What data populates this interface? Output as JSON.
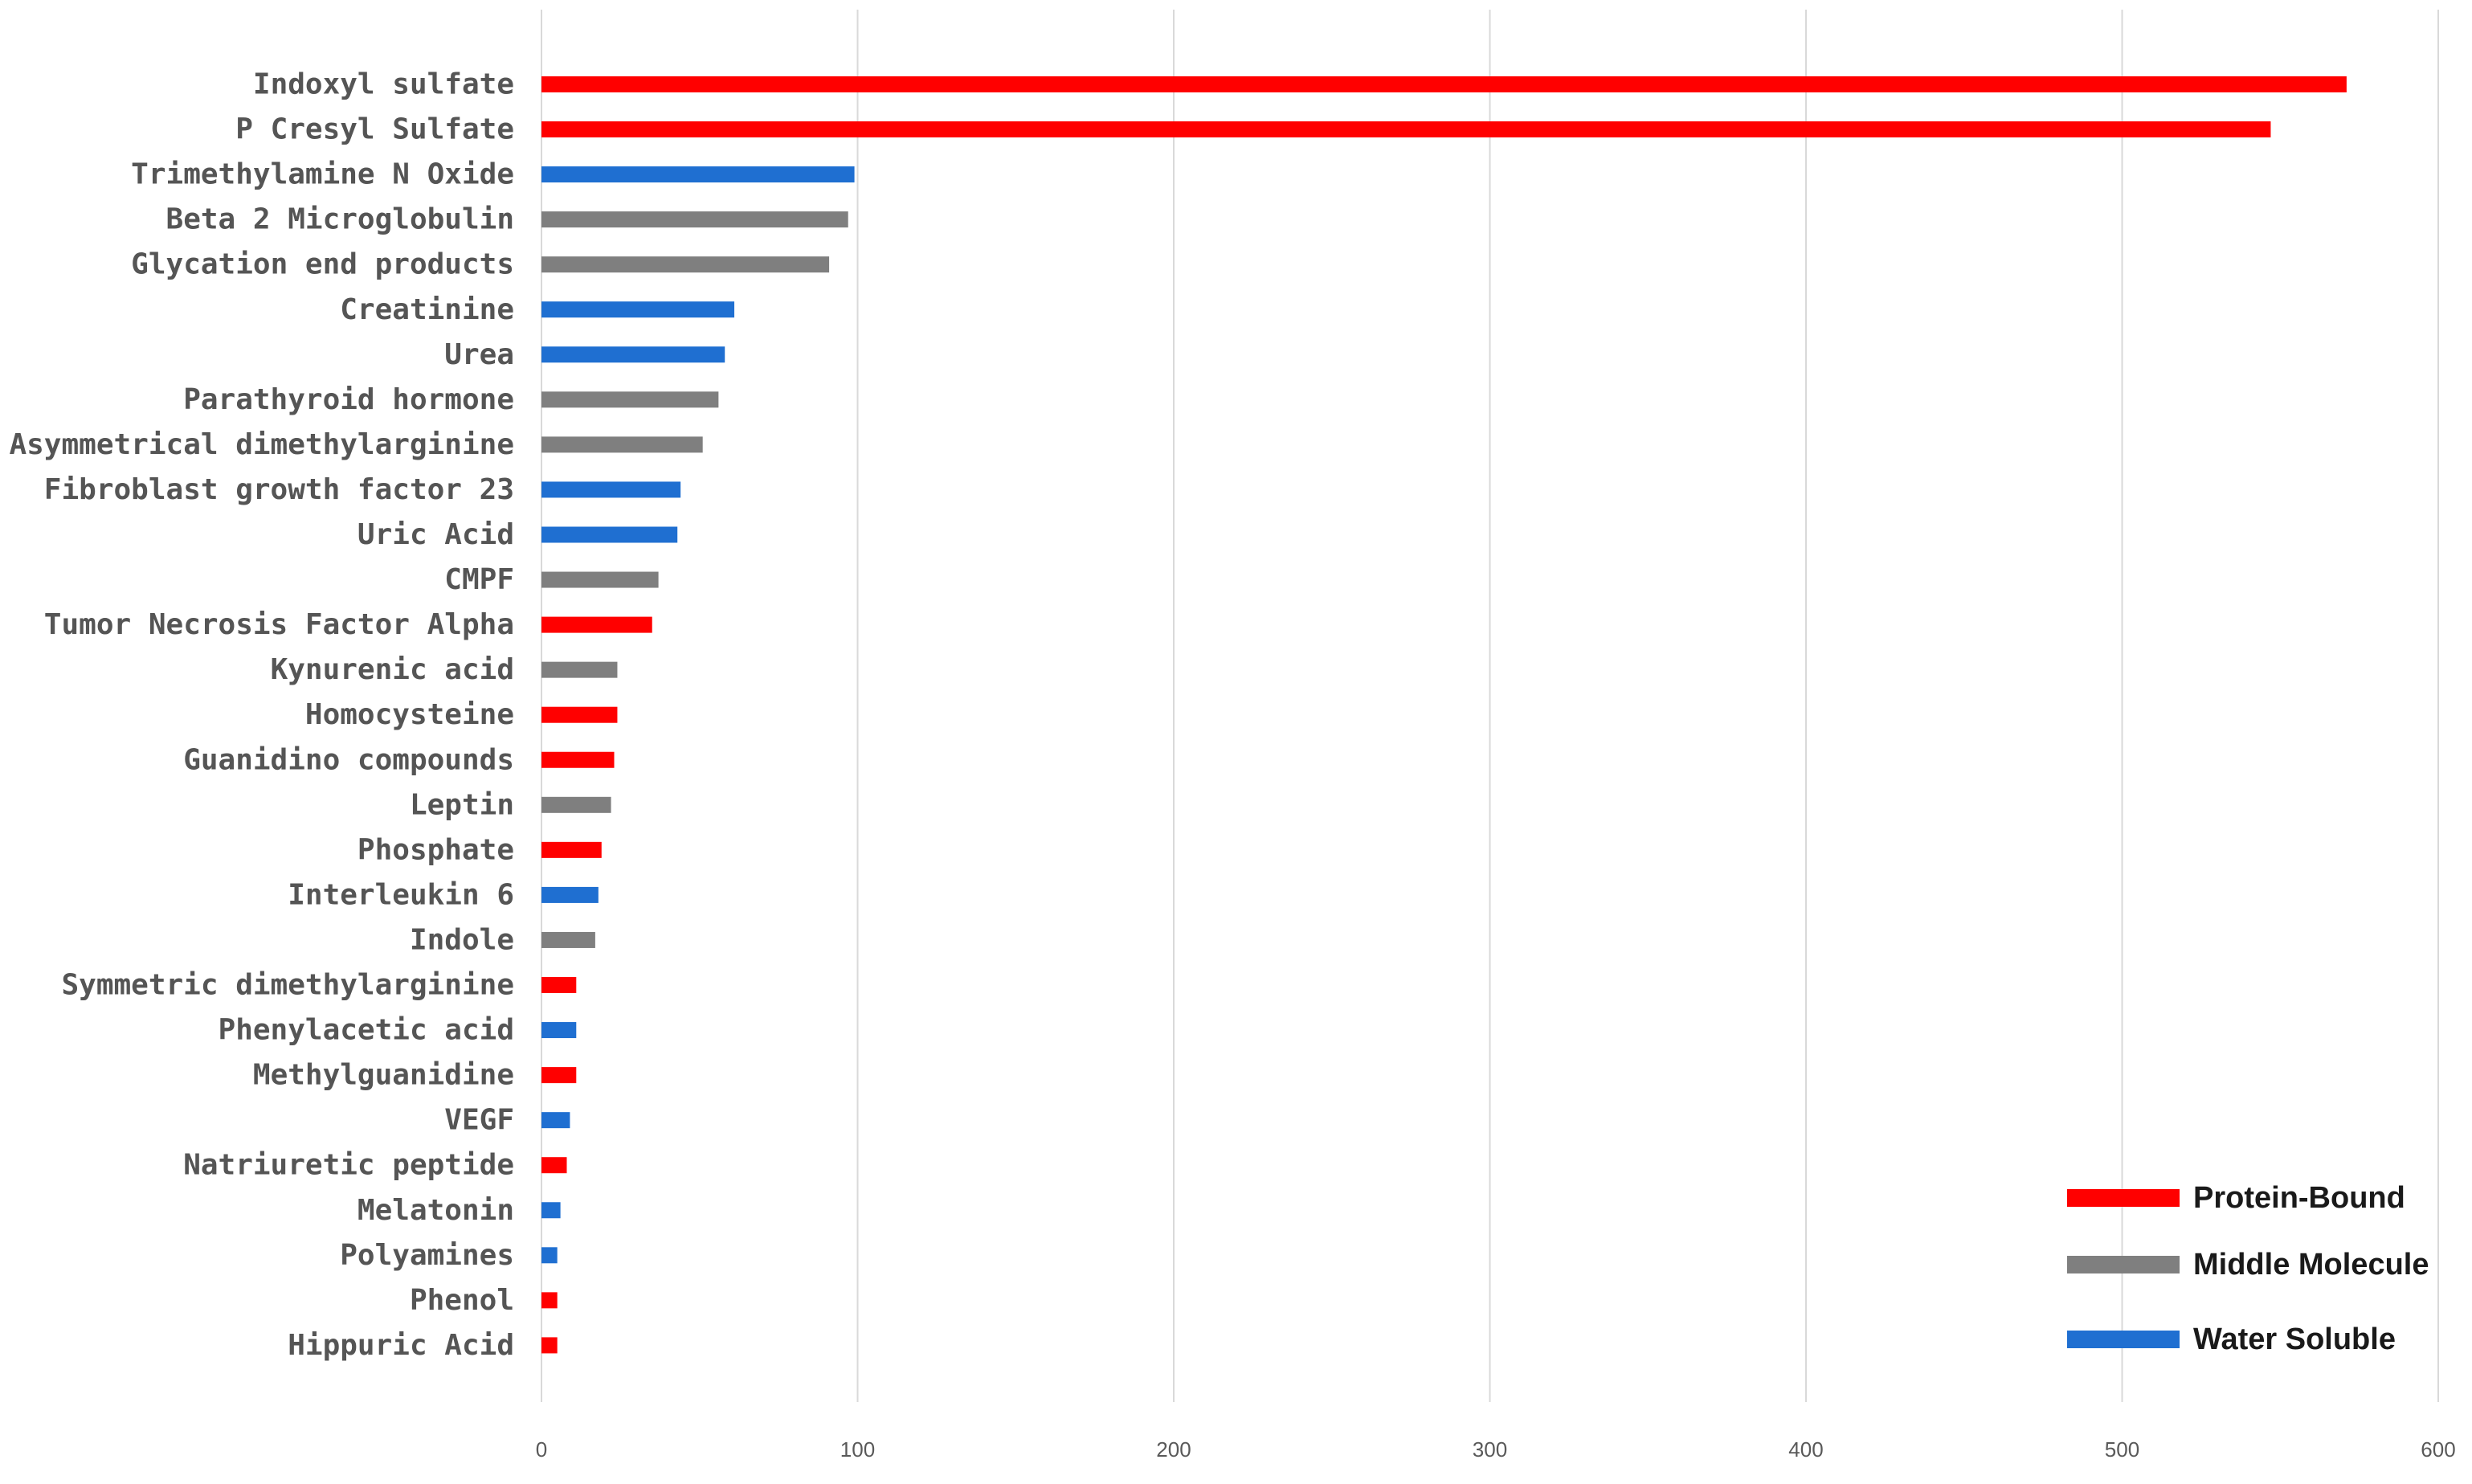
{
  "chart_data": {
    "type": "bar",
    "orientation": "horizontal",
    "title": "",
    "xlabel": "",
    "ylabel": "",
    "xlim": [
      0,
      600
    ],
    "x_ticks": [
      0,
      100,
      200,
      300,
      400,
      500,
      600
    ],
    "grid": "vertical",
    "legend_position": "bottom-right",
    "colors": {
      "Protein-Bound": "#ff0000",
      "Middle Molecule": "#7f7f7f",
      "Water Soluble": "#1f6fd1"
    },
    "legend": [
      "Protein-Bound",
      "Middle Molecule",
      "Water Soluble"
    ],
    "bars": [
      {
        "label": "Indoxyl sulfate",
        "value": 571,
        "group": "Protein-Bound"
      },
      {
        "label": "P Cresyl Sulfate",
        "value": 547,
        "group": "Protein-Bound"
      },
      {
        "label": "Trimethylamine N Oxide",
        "value": 99,
        "group": "Water Soluble"
      },
      {
        "label": "Beta 2 Microglobulin",
        "value": 97,
        "group": "Middle Molecule"
      },
      {
        "label": "Glycation end products",
        "value": 91,
        "group": "Middle Molecule"
      },
      {
        "label": "Creatinine",
        "value": 61,
        "group": "Water Soluble"
      },
      {
        "label": "Urea",
        "value": 58,
        "group": "Water Soluble"
      },
      {
        "label": "Parathyroid hormone",
        "value": 56,
        "group": "Middle Molecule"
      },
      {
        "label": "Asymmetrical dimethylarginine",
        "value": 51,
        "group": "Middle Molecule"
      },
      {
        "label": "Fibroblast growth factor 23",
        "value": 44,
        "group": "Water Soluble"
      },
      {
        "label": "Uric Acid",
        "value": 43,
        "group": "Water Soluble"
      },
      {
        "label": "CMPF",
        "value": 37,
        "group": "Middle Molecule"
      },
      {
        "label": "Tumor Necrosis Factor Alpha",
        "value": 35,
        "group": "Protein-Bound"
      },
      {
        "label": "Kynurenic acid",
        "value": 24,
        "group": "Middle Molecule"
      },
      {
        "label": "Homocysteine",
        "value": 24,
        "group": "Protein-Bound"
      },
      {
        "label": "Guanidino compounds",
        "value": 23,
        "group": "Protein-Bound"
      },
      {
        "label": "Leptin",
        "value": 22,
        "group": "Middle Molecule"
      },
      {
        "label": "Phosphate",
        "value": 19,
        "group": "Protein-Bound"
      },
      {
        "label": "Interleukin 6",
        "value": 18,
        "group": "Water Soluble"
      },
      {
        "label": "Indole",
        "value": 17,
        "group": "Middle Molecule"
      },
      {
        "label": "Symmetric dimethylarginine",
        "value": 11,
        "group": "Protein-Bound"
      },
      {
        "label": "Phenylacetic acid",
        "value": 11,
        "group": "Water Soluble"
      },
      {
        "label": "Methylguanidine",
        "value": 11,
        "group": "Protein-Bound"
      },
      {
        "label": "VEGF",
        "value": 9,
        "group": "Water Soluble"
      },
      {
        "label": "Natriuretic peptide",
        "value": 8,
        "group": "Protein-Bound"
      },
      {
        "label": "Melatonin",
        "value": 6,
        "group": "Water Soluble"
      },
      {
        "label": "Polyamines",
        "value": 5,
        "group": "Water Soluble"
      },
      {
        "label": "Phenol",
        "value": 5,
        "group": "Protein-Bound"
      },
      {
        "label": "Hippuric Acid",
        "value": 5,
        "group": "Protein-Bound"
      }
    ]
  }
}
